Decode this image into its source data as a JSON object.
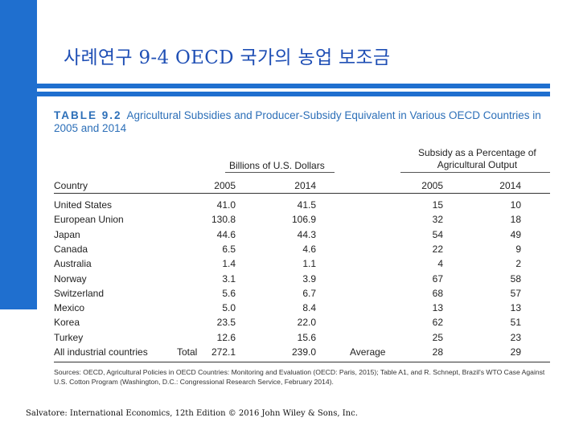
{
  "slide": {
    "title": "사례연구 9-4  OECD 국가의 농업 보조금",
    "footer": "Salvatore: International Economics, 12th Edition © 2016 John Wiley & Sons, Inc."
  },
  "table": {
    "label": "TABLE 9.2",
    "caption": "Agricultural Subsidies and Producer-Subsidy Equivalent in Various OECD Countries in 2005 and 2014",
    "group_headers": {
      "dollars": "Billions of U.S. Dollars",
      "percentage_line1": "Subsidy as a Percentage of",
      "percentage_line2": "Agricultural Output"
    },
    "column_headers": {
      "country": "Country",
      "y2005": "2005",
      "y2014": "2014",
      "p2005": "2005",
      "p2014": "2014"
    },
    "rows": [
      {
        "country": "United States",
        "v2005": "41.0",
        "v2014": "41.5",
        "p2005": "15",
        "p2014": "10"
      },
      {
        "country": "European Union",
        "v2005": "130.8",
        "v2014": "106.9",
        "p2005": "32",
        "p2014": "18"
      },
      {
        "country": "Japan",
        "v2005": "44.6",
        "v2014": "44.3",
        "p2005": "54",
        "p2014": "49"
      },
      {
        "country": "Canada",
        "v2005": "6.5",
        "v2014": "4.6",
        "p2005": "22",
        "p2014": "9"
      },
      {
        "country": "Australia",
        "v2005": "1.4",
        "v2014": "1.1",
        "p2005": "4",
        "p2014": "2"
      },
      {
        "country": "Norway",
        "v2005": "3.1",
        "v2014": "3.9",
        "p2005": "67",
        "p2014": "58"
      },
      {
        "country": "Switzerland",
        "v2005": "5.6",
        "v2014": "6.7",
        "p2005": "68",
        "p2014": "57"
      },
      {
        "country": "Mexico",
        "v2005": "5.0",
        "v2014": "8.4",
        "p2005": "13",
        "p2014": "13"
      },
      {
        "country": "Korea",
        "v2005": "23.5",
        "v2014": "22.0",
        "p2005": "62",
        "p2014": "51"
      },
      {
        "country": "Turkey",
        "v2005": "12.6",
        "v2014": "15.6",
        "p2005": "25",
        "p2014": "23"
      }
    ],
    "summary": {
      "country": "All industrial countries",
      "total_label": "Total",
      "v2005": "272.1",
      "v2014": "239.0",
      "average_label": "Average",
      "p2005": "28",
      "p2014": "29"
    },
    "sources": "Sources: OECD, Agricultural Policies in OECD Countries: Monitoring and Evaluation (OECD: Paris, 2015); Table A1, and R. Schnept, Brazil's WTO Case Against U.S. Cotton Program (Washington, D.C.: Congressional Research Service, February 2014)."
  }
}
